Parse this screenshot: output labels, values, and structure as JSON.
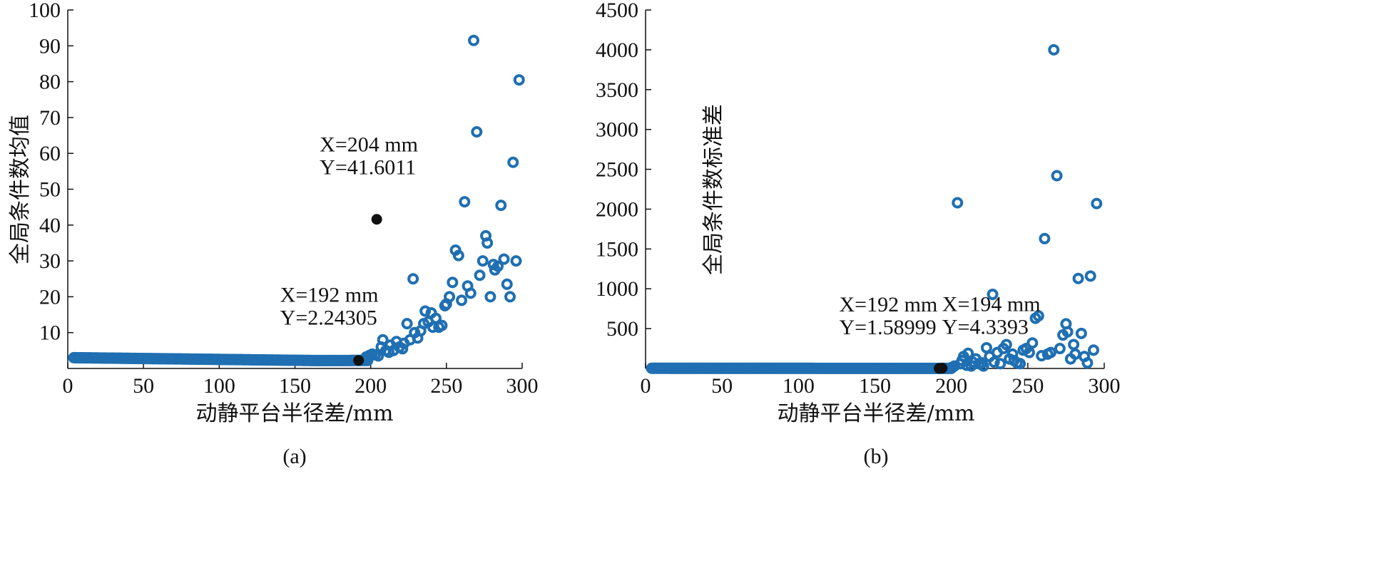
{
  "chart_data": [
    {
      "type": "scatter",
      "panel": "(a)",
      "caption": "(a)",
      "xlabel": "动静平台半径差/mm",
      "ylabel": "全局条件数均值",
      "xlim": [
        0,
        300
      ],
      "ylim": [
        0,
        100
      ],
      "xticks": [
        0,
        50,
        100,
        150,
        200,
        250,
        300
      ],
      "yticks": [
        10,
        20,
        30,
        40,
        50,
        60,
        70,
        80,
        90,
        100
      ],
      "grid": false,
      "marker": "open-circle",
      "color": "#1f6fb2",
      "series": [
        {
          "baseline_curve": {
            "x_range": [
              4,
              198
            ],
            "y_start": 3.0,
            "y_end": 2.24,
            "y_min": 2.2
          },
          "points": [
            [
              197,
              3.2
            ],
            [
              199,
              3.6
            ],
            [
              201,
              4.0
            ],
            [
              203,
              3.8
            ],
            [
              205,
              3.5
            ],
            [
              207,
              6.0
            ],
            [
              208,
              8.0
            ],
            [
              210,
              5.0
            ],
            [
              212,
              4.5
            ],
            [
              213,
              6.5
            ],
            [
              215,
              5.0
            ],
            [
              217,
              7.5
            ],
            [
              219,
              6.0
            ],
            [
              221,
              5.5
            ],
            [
              222,
              7.0
            ],
            [
              224,
              12.5
            ],
            [
              226,
              8.0
            ],
            [
              228,
              25.0
            ],
            [
              229,
              10.0
            ],
            [
              231,
              8.5
            ],
            [
              233,
              10.5
            ],
            [
              235,
              12.5
            ],
            [
              236,
              16.0
            ],
            [
              238,
              13.0
            ],
            [
              240,
              15.5
            ],
            [
              241,
              11.5
            ],
            [
              243,
              14.0
            ],
            [
              245,
              11.5
            ],
            [
              247,
              12.0
            ],
            [
              249,
              17.5
            ],
            [
              250,
              18.0
            ],
            [
              252,
              20.0
            ],
            [
              254,
              24.0
            ],
            [
              256,
              33.0
            ],
            [
              258,
              31.5
            ],
            [
              260,
              19.0
            ],
            [
              262,
              46.5
            ],
            [
              264,
              23.0
            ],
            [
              266,
              21.0
            ],
            [
              268,
              91.5
            ],
            [
              270,
              66.0
            ],
            [
              272,
              26.0
            ],
            [
              274,
              30.0
            ],
            [
              276,
              37.0
            ],
            [
              277,
              35.0
            ],
            [
              279,
              20.0
            ],
            [
              281,
              29.0
            ],
            [
              282,
              27.5
            ],
            [
              284,
              28.5
            ],
            [
              286,
              45.5
            ],
            [
              288,
              30.5
            ],
            [
              290,
              23.5
            ],
            [
              292,
              20.0
            ],
            [
              294,
              57.5
            ],
            [
              296,
              30.0
            ],
            [
              298,
              80.5
            ]
          ]
        }
      ],
      "highlights": [
        {
          "x": 192,
          "y": 2.24305,
          "label_x": "X=192 mm",
          "label_y": "Y=2.24305"
        },
        {
          "x": 204,
          "y": 41.6011,
          "label_x": "X=204 mm",
          "label_y": "Y=41.6011"
        }
      ]
    },
    {
      "type": "scatter",
      "panel": "(b)",
      "caption": "(b)",
      "xlabel": "动静平台半径差/mm",
      "ylabel": "全局条件数标准差",
      "xlim": [
        0,
        300
      ],
      "ylim": [
        0,
        4500
      ],
      "xticks": [
        0,
        50,
        100,
        150,
        200,
        250,
        300
      ],
      "yticks": [
        500,
        1000,
        1500,
        2000,
        2500,
        3000,
        3500,
        4000,
        4500
      ],
      "grid": false,
      "marker": "open-circle",
      "color": "#1f6fb2",
      "series": [
        {
          "baseline_curve": {
            "x_range": [
              4,
              200
            ],
            "y_start": 2.0,
            "y_end": 1.6,
            "y_min": 1.5
          },
          "points": [
            [
              200,
              10
            ],
            [
              202,
              30
            ],
            [
              204,
              2080
            ],
            [
              206,
              60
            ],
            [
              207,
              100
            ],
            [
              208,
              150
            ],
            [
              210,
              40
            ],
            [
              211,
              190
            ],
            [
              213,
              30
            ],
            [
              214,
              80
            ],
            [
              216,
              120
            ],
            [
              218,
              60
            ],
            [
              220,
              70
            ],
            [
              221,
              30
            ],
            [
              223,
              260
            ],
            [
              225,
              150
            ],
            [
              227,
              930
            ],
            [
              228,
              80
            ],
            [
              230,
              200
            ],
            [
              232,
              60
            ],
            [
              234,
              250
            ],
            [
              236,
              300
            ],
            [
              238,
              120
            ],
            [
              240,
              180
            ],
            [
              241,
              100
            ],
            [
              243,
              70
            ],
            [
              245,
              60
            ],
            [
              247,
              230
            ],
            [
              249,
              250
            ],
            [
              251,
              200
            ],
            [
              253,
              320
            ],
            [
              255,
              630
            ],
            [
              257,
              660
            ],
            [
              259,
              160
            ],
            [
              261,
              1630
            ],
            [
              263,
              180
            ],
            [
              265,
              200
            ],
            [
              267,
              4000
            ],
            [
              269,
              2420
            ],
            [
              271,
              250
            ],
            [
              273,
              420
            ],
            [
              275,
              560
            ],
            [
              276,
              460
            ],
            [
              278,
              120
            ],
            [
              280,
              300
            ],
            [
              281,
              180
            ],
            [
              283,
              1130
            ],
            [
              285,
              440
            ],
            [
              287,
              150
            ],
            [
              289,
              70
            ],
            [
              291,
              1160
            ],
            [
              293,
              230
            ],
            [
              295,
              2070
            ]
          ]
        }
      ],
      "highlights": [
        {
          "x": 192,
          "y": 1.58999,
          "label_x": "X=192 mm",
          "label_y": "Y=1.58999"
        },
        {
          "x": 194,
          "y": 4.3393,
          "label_x": "X=194 mm",
          "label_y": "Y=4.3393"
        }
      ]
    }
  ]
}
